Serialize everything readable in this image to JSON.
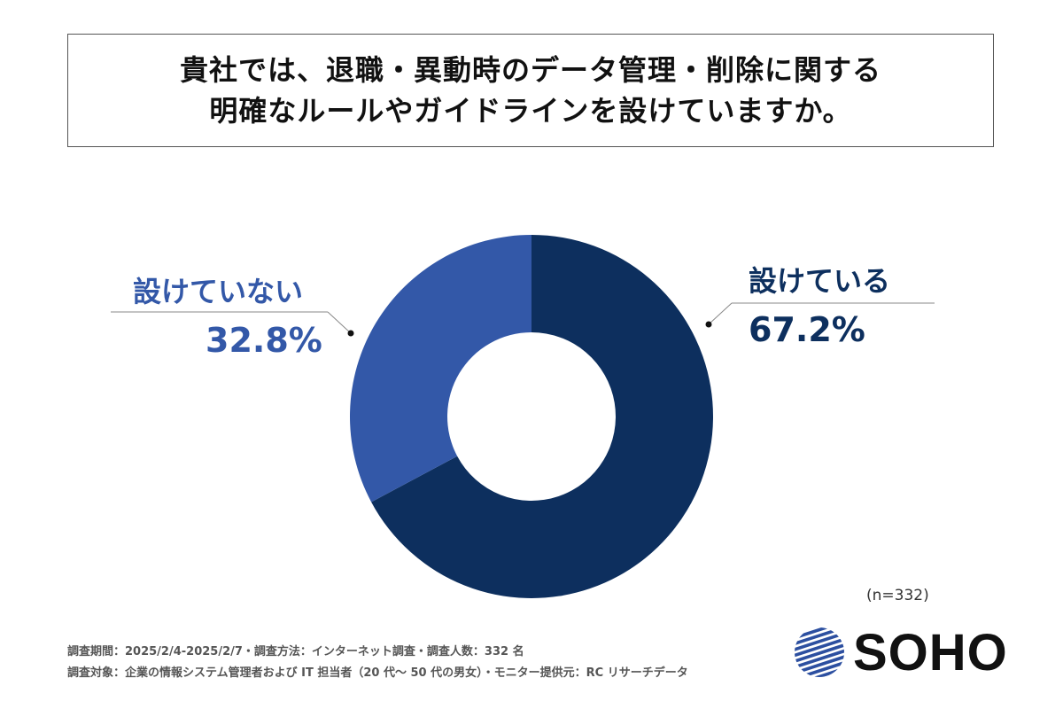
{
  "title": {
    "line1": "貴社では、退職・異動時のデータ管理・削除に関する",
    "line2": "明確なルールやガイドラインを設けていますか。"
  },
  "chart_data": {
    "type": "pie",
    "categories": [
      "設けている",
      "設けていない"
    ],
    "values": [
      67.2,
      32.8
    ],
    "value_labels": [
      "67.2%",
      "32.8%"
    ],
    "colors": [
      "#0d2f5e",
      "#3358a8"
    ],
    "sample_size": "(n=332)"
  },
  "footer": {
    "line1": "調査期間：2025/2/4-2025/2/7・調査方法：インターネット調査・調査人数：332 名",
    "line2": "調査対象：企業の情報システム管理者および IT 担当者（20 代〜 50 代の男女）・モニター提供元：RC リサーチデータ"
  },
  "logo": {
    "text": "SOHO",
    "colors": [
      "#2c4fa0",
      "#111111"
    ]
  }
}
